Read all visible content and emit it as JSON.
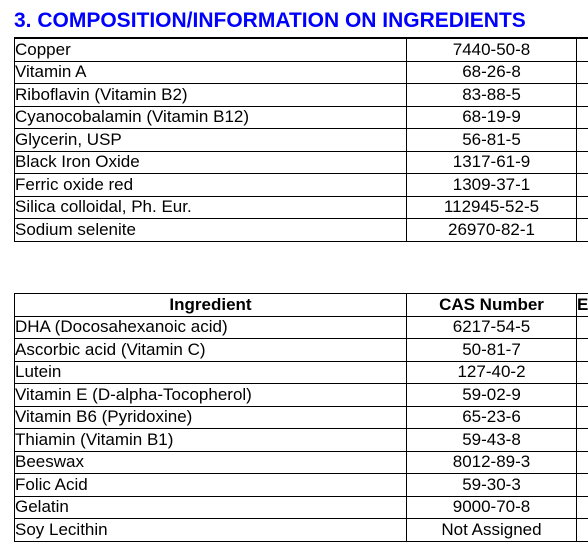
{
  "section": {
    "title": "3. COMPOSITION/INFORMATION ON INGREDIENTS"
  },
  "table1": {
    "rows": [
      {
        "name": "Copper",
        "cas": "7440-50-8"
      },
      {
        "name": "Vitamin A",
        "cas": "68-26-8"
      },
      {
        "name": "Riboflavin (Vitamin B2)",
        "cas": "83-88-5"
      },
      {
        "name": "Cyanocobalamin (Vitamin B12)",
        "cas": "68-19-9"
      },
      {
        "name": "Glycerin, USP",
        "cas": "56-81-5"
      },
      {
        "name": "Black Iron Oxide",
        "cas": "1317-61-9"
      },
      {
        "name": "Ferric oxide red",
        "cas": "1309-37-1"
      },
      {
        "name": "Silica colloidal, Ph. Eur.",
        "cas": "112945-52-5"
      },
      {
        "name": "Sodium selenite",
        "cas": "26970-82-1"
      }
    ]
  },
  "table2": {
    "headers": {
      "ingredient": "Ingredient",
      "cas": "CAS Number",
      "third": "E"
    },
    "rows": [
      {
        "name": "DHA (Docosahexanoic acid)",
        "cas": "6217-54-5"
      },
      {
        "name": "Ascorbic acid (Vitamin C)",
        "cas": "50-81-7"
      },
      {
        "name": "Lutein",
        "cas": "127-40-2"
      },
      {
        "name": "Vitamin E (D-alpha-Tocopherol)",
        "cas": "59-02-9"
      },
      {
        "name": "Vitamin B6 (Pyridoxine)",
        "cas": "65-23-6"
      },
      {
        "name": "Thiamin (Vitamin B1)",
        "cas": "59-43-8"
      },
      {
        "name": "Beeswax",
        "cas": "8012-89-3"
      },
      {
        "name": "Folic Acid",
        "cas": "59-30-3"
      },
      {
        "name": "Gelatin",
        "cas": "9000-70-8"
      },
      {
        "name": "Soy Lecithin",
        "cas": "Not Assigned"
      }
    ]
  }
}
